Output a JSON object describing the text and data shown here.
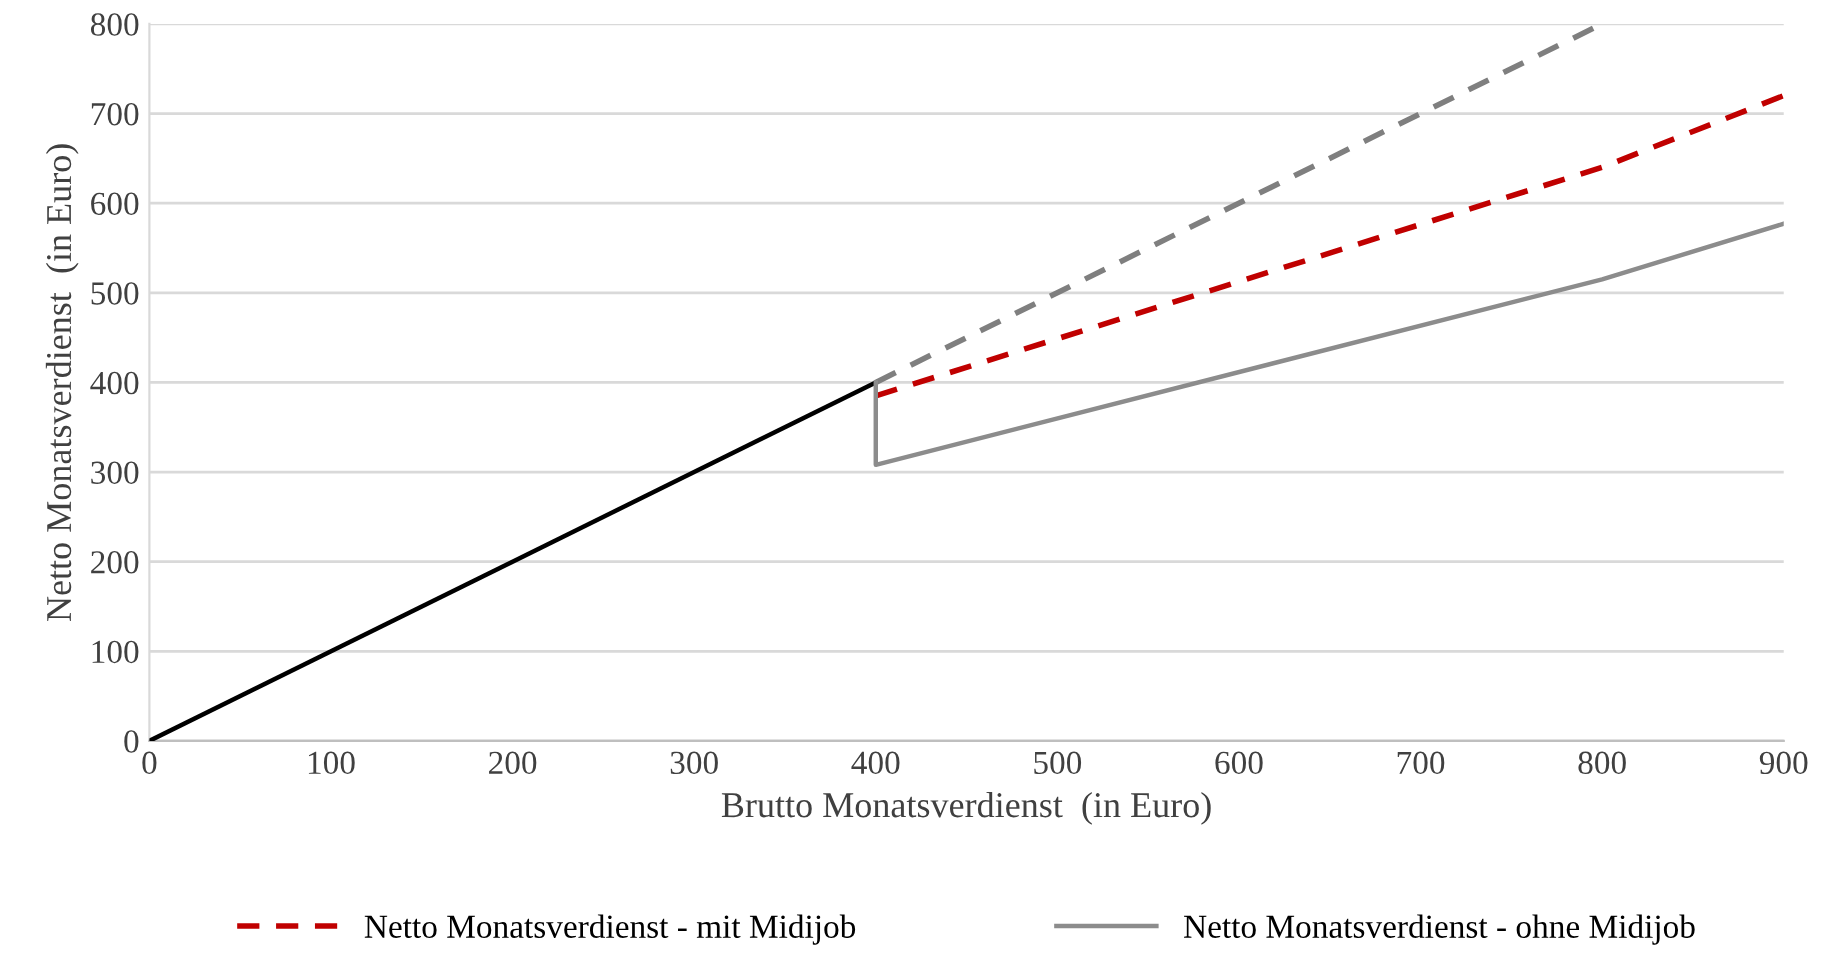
{
  "chart_data": {
    "type": "line",
    "xlabel": "Brutto Monatsverdienst  (in Euro)",
    "ylabel": "Netto Monatsverdienst  (in Euro)",
    "xlim": [
      0,
      900
    ],
    "xticks": [
      0,
      100,
      200,
      300,
      400,
      500,
      600,
      700,
      800,
      900
    ],
    "ylim": [
      0,
      800
    ],
    "yticks": [
      0,
      100,
      200,
      300,
      400,
      500,
      600,
      700,
      800
    ],
    "grid": "y",
    "legend": "bottom",
    "marker": "none",
    "series": [
      {
        "x": [
          0,
          400
        ],
        "values": [
          0,
          400
        ],
        "color": "#000000",
        "line_style": "solid"
      },
      {
        "x": [
          400,
          800
        ],
        "values": [
          400,
          800
        ],
        "color": "#7f7f7f",
        "line_style": "dashed"
      },
      {
        "name": "Netto Monatsverdienst - mit Midijob",
        "x": [
          400,
          800,
          900
        ],
        "values": [
          385,
          640,
          720
        ],
        "color": "#c00000",
        "line_style": "dashed"
      },
      {
        "name": "Netto Monatsverdienst - ohne Midijob",
        "x": [
          400,
          400,
          800,
          900
        ],
        "values": [
          400,
          308,
          515,
          577
        ],
        "color": "#8c8c8c",
        "line_style": "solid"
      }
    ]
  }
}
